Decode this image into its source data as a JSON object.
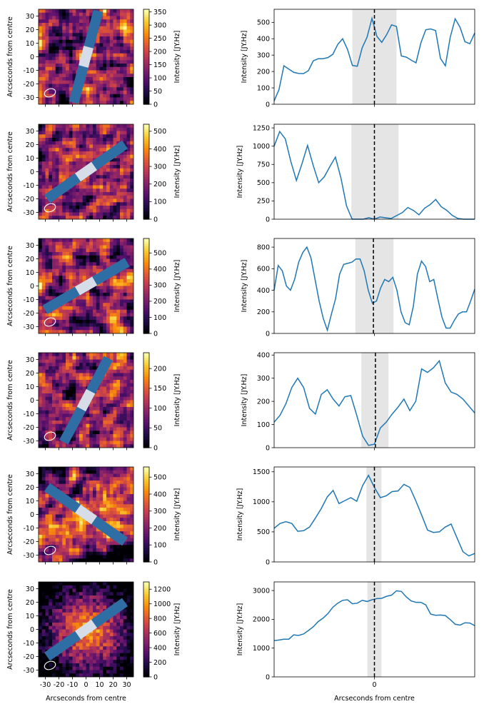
{
  "figure": {
    "colorbar_label": "Intensity [JY.Hz]",
    "image_ylabel": "Arcseconds from centre",
    "image_xlabel": "Arcseconds from centre",
    "image_ticks": [
      "-30",
      "-20",
      "-10",
      "0",
      "10",
      "20",
      "30"
    ],
    "profile_xlabel": "Arcseconds from centre",
    "profile_ylabel": "Intensity [JY.Hz]",
    "profile_xtick": "0",
    "line_color": "#1f77b4",
    "slit_color": "#2f6ea4",
    "center_color": "#d6dde8",
    "colormap": "inferno"
  },
  "chart_data": [
    {
      "type": "heatmap",
      "colorbar_ticks": [
        0,
        50,
        100,
        150,
        200,
        250,
        300,
        350
      ],
      "cmax": 360,
      "slit_angle_deg": 75,
      "beam_position": "bottom-left"
    },
    {
      "type": "line",
      "ylim": [
        0,
        580
      ],
      "yticks": [
        0,
        100,
        200,
        300,
        400,
        500
      ],
      "shaded_range": [
        -0.22,
        0.22
      ],
      "center_x": 0,
      "y": [
        20,
        90,
        235,
        215,
        195,
        188,
        187,
        205,
        265,
        278,
        278,
        285,
        305,
        365,
        400,
        335,
        237,
        232,
        345,
        410,
        525,
        415,
        378,
        425,
        485,
        475,
        295,
        288,
        270,
        253,
        375,
        455,
        460,
        450,
        280,
        235,
        410,
        522,
        470,
        382,
        370,
        435
      ]
    },
    {
      "type": "heatmap",
      "colorbar_ticks": [
        0,
        100,
        200,
        300,
        400,
        500
      ],
      "cmax": 540,
      "slit_angle_deg": 35,
      "beam_position": "bottom-left"
    },
    {
      "type": "line",
      "ylim": [
        0,
        1300
      ],
      "yticks": [
        0,
        250,
        500,
        750,
        1000,
        1250
      ],
      "shaded_range": [
        -0.23,
        0.24
      ],
      "center_x": 0,
      "y": [
        1000,
        1200,
        1100,
        790,
        530,
        760,
        1010,
        740,
        500,
        580,
        720,
        850,
        560,
        180,
        0,
        0,
        0,
        20,
        0,
        30,
        20,
        10,
        50,
        90,
        160,
        120,
        60,
        150,
        200,
        270,
        170,
        120,
        50,
        10,
        0,
        0,
        0
      ]
    },
    {
      "type": "heatmap",
      "colorbar_ticks": [
        0,
        100,
        200,
        300,
        400,
        500
      ],
      "cmax": 590,
      "slit_angle_deg": 30,
      "beam_position": "bottom-left"
    },
    {
      "type": "line",
      "ylim": [
        0,
        880
      ],
      "yticks": [
        0,
        200,
        400,
        600,
        800
      ],
      "shaded_range": [
        -0.19,
        0.19
      ],
      "center_x": -0.01,
      "y": [
        400,
        630,
        580,
        440,
        400,
        500,
        660,
        750,
        800,
        700,
        500,
        300,
        140,
        30,
        180,
        320,
        550,
        640,
        650,
        660,
        690,
        690,
        580,
        400,
        280,
        300,
        420,
        500,
        480,
        520,
        400,
        200,
        100,
        80,
        250,
        550,
        670,
        620,
        480,
        500,
        320,
        150,
        50,
        50,
        120,
        180,
        200,
        200,
        300,
        410
      ]
    },
    {
      "type": "heatmap",
      "colorbar_ticks": [
        0,
        50,
        100,
        150,
        200
      ],
      "cmax": 240,
      "slit_angle_deg": 62,
      "beam_position": "bottom-left"
    },
    {
      "type": "line",
      "ylim": [
        0,
        410
      ],
      "yticks": [
        0,
        100,
        200,
        300,
        400
      ],
      "shaded_range": [
        -0.13,
        0.14
      ],
      "center_x": 0.01,
      "y": [
        110,
        140,
        190,
        260,
        300,
        260,
        170,
        145,
        230,
        250,
        210,
        180,
        220,
        225,
        140,
        50,
        10,
        15,
        85,
        110,
        145,
        175,
        210,
        160,
        200,
        340,
        325,
        345,
        375,
        280,
        240,
        230,
        210,
        180,
        150
      ]
    },
    {
      "type": "heatmap",
      "colorbar_ticks": [
        0,
        100,
        200,
        300,
        400,
        500
      ],
      "cmax": 560,
      "slit_angle_deg": -35,
      "beam_position": "bottom-left"
    },
    {
      "type": "line",
      "ylim": [
        0,
        1580
      ],
      "yticks": [
        0,
        500,
        1000,
        1500
      ],
      "shaded_range": [
        -0.08,
        0.07
      ],
      "center_x": 0,
      "y": [
        560,
        640,
        670,
        640,
        510,
        520,
        580,
        730,
        890,
        1080,
        1190,
        970,
        1020,
        1070,
        1010,
        1270,
        1440,
        1240,
        1070,
        1100,
        1170,
        1180,
        1290,
        1240,
        1020,
        780,
        530,
        490,
        500,
        580,
        630,
        400,
        170,
        100,
        140
      ]
    },
    {
      "type": "heatmap",
      "colorbar_ticks": [
        0,
        200,
        400,
        600,
        800,
        1000,
        1200
      ],
      "cmax": 1300,
      "slit_angle_deg": 35,
      "beam_position": "bottom-left"
    },
    {
      "type": "line",
      "ylim": [
        0,
        3300
      ],
      "yticks": [
        0,
        1000,
        2000,
        3000
      ],
      "shaded_range": [
        -0.07,
        0.07
      ],
      "center_x": 0,
      "y": [
        1260,
        1280,
        1310,
        1310,
        1460,
        1440,
        1490,
        1610,
        1740,
        1920,
        2040,
        2200,
        2420,
        2560,
        2660,
        2680,
        2540,
        2560,
        2660,
        2620,
        2680,
        2720,
        2730,
        2800,
        2840,
        2990,
        2970,
        2780,
        2640,
        2590,
        2590,
        2500,
        2180,
        2140,
        2150,
        2130,
        1990,
        1830,
        1800,
        1880,
        1870,
        1780
      ]
    }
  ]
}
